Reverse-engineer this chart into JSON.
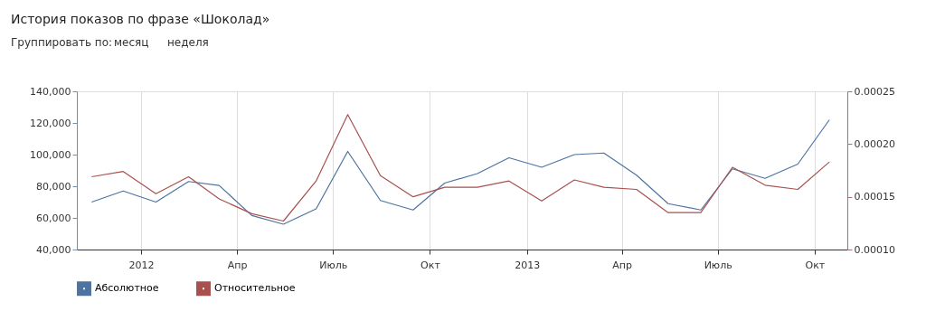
{
  "chart_data": {
    "type": "line",
    "title": "История показов по фразе «Шоколад»",
    "annotations": [
      "Группировать по:",
      "месяц",
      "неделя"
    ],
    "x": [
      "2011-11-15",
      "2011-12-15",
      "2012-01-15",
      "2012-02-15",
      "2012-03-15",
      "2012-04-15",
      "2012-05-15",
      "2012-06-15",
      "2012-07-15",
      "2012-08-15",
      "2012-09-15",
      "2012-10-15",
      "2012-11-15",
      "2012-12-15",
      "2013-01-15",
      "2013-02-15",
      "2013-03-15",
      "2013-04-15",
      "2013-05-15",
      "2013-06-15",
      "2013-07-15",
      "2013-08-15",
      "2013-09-15",
      "2013-10-15"
    ],
    "series": [
      {
        "name": "Абсолютное",
        "color": "#4e73a0",
        "values": [
          70000,
          77000,
          70000,
          83000,
          80500,
          61500,
          56000,
          65700,
          102000,
          71000,
          65000,
          82000,
          88000,
          98000,
          92000,
          100000,
          101000,
          87000,
          69000,
          65000,
          91000,
          85000,
          94000,
          122000
        ]
      },
      {
        "name": "Относительное",
        "color": "#a8504f",
        "axis": "y2",
        "values": [
          0.000169,
          0.000174,
          0.000153,
          0.000169,
          0.000148,
          0.000134,
          0.000127,
          0.000165,
          0.000228,
          0.00017,
          0.00015,
          0.000159,
          0.000159,
          0.000165,
          0.000146,
          0.000166,
          0.000159,
          0.000157,
          0.000135,
          0.000135,
          0.000178,
          0.000161,
          0.000157,
          0.000183
        ]
      }
    ],
    "xlim": [
      "2011-11-01",
      "2013-11-01"
    ],
    "xticks": [
      {
        "value": "2012-01-01",
        "label": "2012"
      },
      {
        "value": "2012-04-01",
        "label": "Апр"
      },
      {
        "value": "2012-07-01",
        "label": "Июль"
      },
      {
        "value": "2012-10-01",
        "label": "Окт"
      },
      {
        "value": "2013-01-01",
        "label": "2013"
      },
      {
        "value": "2013-04-01",
        "label": "Апр"
      },
      {
        "value": "2013-07-01",
        "label": "Июль"
      },
      {
        "value": "2013-10-01",
        "label": "Окт"
      }
    ],
    "ylim": [
      40000,
      140000
    ],
    "yticks": [
      {
        "value": 40000,
        "label": "40,000"
      },
      {
        "value": 60000,
        "label": "60,000"
      },
      {
        "value": 80000,
        "label": "80,000"
      },
      {
        "value": 100000,
        "label": "100,000"
      },
      {
        "value": 120000,
        "label": "120,000"
      },
      {
        "value": 140000,
        "label": "140,000"
      }
    ],
    "y2lim": [
      0.0001,
      0.00025
    ],
    "y2ticks": [
      {
        "value": 0.0001,
        "label": "0.00010"
      },
      {
        "value": 0.00015,
        "label": "0.00015"
      },
      {
        "value": 0.0002,
        "label": "0.00020"
      },
      {
        "value": 0.00025,
        "label": "0.00025"
      }
    ],
    "grid": "x",
    "legend": "bottom left"
  }
}
